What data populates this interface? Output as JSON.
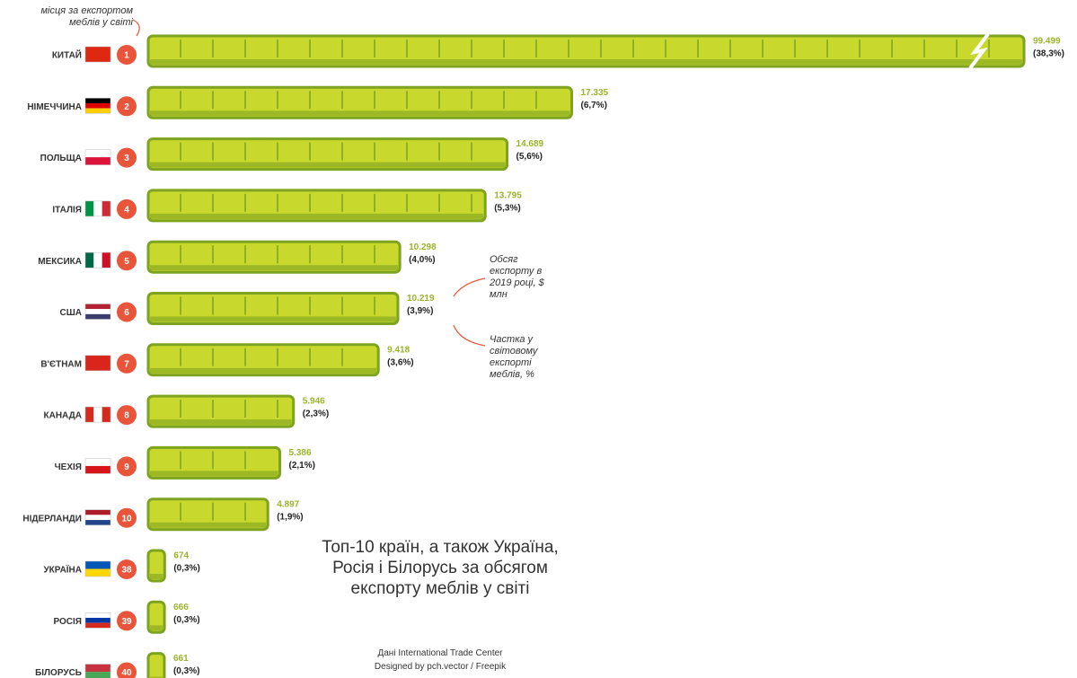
{
  "chart_data": {
    "type": "bar",
    "title": "Топ-10 країн, а також Україна, Росія і Білорусь за обсягом експорту меблів у світі",
    "annotations": [
      "місця за експортом меблів у світі",
      "Обсяг експорту в 2019 році, $ млн",
      "Частка у світовому експорті меблів, %"
    ],
    "source": "Дані International Trade Center",
    "credit": "Designed by pch.vector / Freepik",
    "categories": [
      "КИТАЙ",
      "НІМЕЧЧИНА",
      "ПОЛЬЩА",
      "ІТАЛІЯ",
      "МЕКСИКА",
      "США",
      "В'ЄТНАМ",
      "КАНАДА",
      "ЧЕХІЯ",
      "НІДЕРЛАНДИ",
      "УКРАЇНА",
      "РОСІЯ",
      "БІЛОРУСЬ"
    ],
    "ranks": [
      1,
      2,
      3,
      4,
      5,
      6,
      7,
      8,
      9,
      10,
      38,
      39,
      40
    ],
    "values": [
      99499,
      17335,
      14689,
      13795,
      10298,
      10219,
      9418,
      5946,
      5386,
      4897,
      674,
      666,
      661
    ],
    "value_labels": [
      "99.499",
      "17.335",
      "14.689",
      "13.795",
      "10.298",
      "10.219",
      "9.418",
      "5.946",
      "5.386",
      "4.897",
      "674",
      "666",
      "661"
    ],
    "shares": [
      38.3,
      6.7,
      5.6,
      5.3,
      4.0,
      3.9,
      3.6,
      2.3,
      2.1,
      1.9,
      0.3,
      0.3,
      0.3
    ],
    "share_labels": [
      "(38,3%)",
      "(6,7%)",
      "(5,6%)",
      "(5,3%)",
      "(4,0%)",
      "(3,9%)",
      "(3,6%)",
      "(2,3%)",
      "(2,1%)",
      "(1,9%)",
      "(0,3%)",
      "(0,3%)",
      "(0,3%)"
    ],
    "color": "#c8d82c",
    "outline": "#7ea321",
    "rank_color": "#e8553a",
    "value_color": "#9ab52a",
    "bar_break": true
  }
}
